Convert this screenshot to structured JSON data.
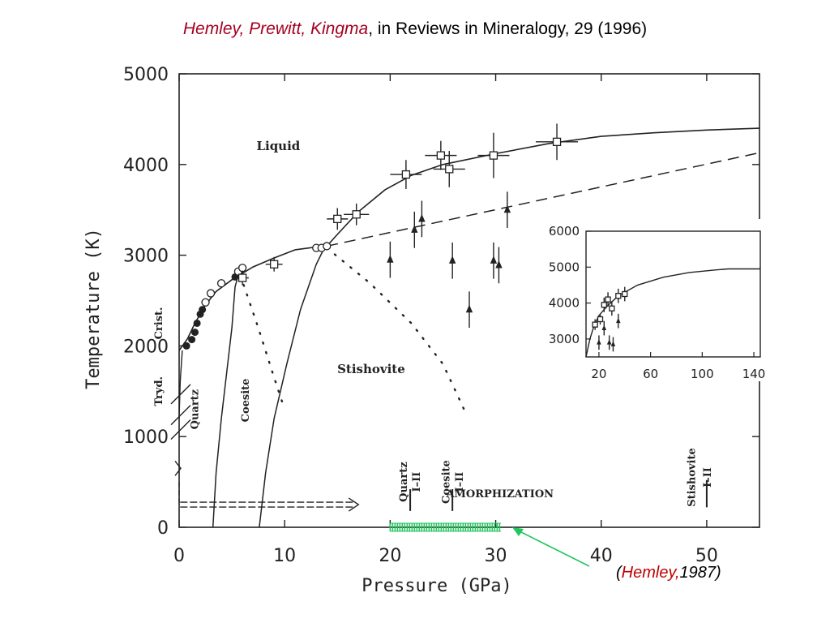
{
  "header": {
    "authors": "Hemley, Prewitt, Kingma",
    "rest": ", in Reviews in Mineralogy, 29 (1996)"
  },
  "attribution": {
    "open": "(",
    "name": "Hemley,",
    "year": "1987)"
  },
  "colors": {
    "title_red": "#a50021",
    "ink": "#222222",
    "green": "#22c55e"
  },
  "chart_data": [
    {
      "type": "scatter",
      "title": "",
      "xlabel": "Pressure (GPa)",
      "ylabel": "Temperature (K)",
      "xlim": [
        0,
        55
      ],
      "ylim": [
        0,
        5000
      ],
      "x_ticks": [
        "0",
        "10",
        "20",
        "30",
        "40",
        "50"
      ],
      "x_tick_values": [
        0,
        10,
        20,
        30,
        40,
        50
      ],
      "y_ticks": [
        "0",
        "1000",
        "2000",
        "3000",
        "4000",
        "5000"
      ],
      "y_tick_values": [
        0,
        1000,
        2000,
        3000,
        4000,
        5000
      ],
      "phase_labels": [
        {
          "text": "Liquid",
          "x": 9.4,
          "y": 4160,
          "rotate": 0
        },
        {
          "text": "Stishovite",
          "x": 18.2,
          "y": 1700,
          "rotate": 0
        },
        {
          "text": "Crist.",
          "x": -1.6,
          "y": 2250,
          "rotate": -90
        },
        {
          "text": "Tryd.",
          "x": -1.6,
          "y": 1500,
          "rotate": -90
        },
        {
          "text": "Quartz",
          "x": 1.8,
          "y": 1300,
          "rotate": -90
        },
        {
          "text": "Coesite",
          "x": 6.6,
          "y": 1400,
          "rotate": -90
        },
        {
          "text": "Quartz",
          "x": 21.6,
          "y": 500,
          "rotate": -90
        },
        {
          "text": "I–II",
          "x": 22.8,
          "y": 500,
          "rotate": -90
        },
        {
          "text": "Coesite",
          "x": 25.6,
          "y": 500,
          "rotate": -90
        },
        {
          "text": "I–II",
          "x": 26.9,
          "y": 500,
          "rotate": -90
        },
        {
          "text": "Stishovite",
          "x": 48.9,
          "y": 550,
          "rotate": -90
        },
        {
          "text": "I–II",
          "x": 50.4,
          "y": 550,
          "rotate": -90
        },
        {
          "text": "AMORPHIZATION",
          "x": 30.4,
          "y": 330,
          "rotate": 0
        }
      ],
      "melting_curve": [
        [
          0.0,
          1950
        ],
        [
          0.8,
          2080
        ],
        [
          1.5,
          2250
        ],
        [
          2.5,
          2450
        ],
        [
          3.5,
          2600
        ],
        [
          5.0,
          2730
        ],
        [
          7.0,
          2870
        ],
        [
          9.0,
          2970
        ],
        [
          11.0,
          3060
        ],
        [
          13.0,
          3090
        ],
        [
          14.0,
          3100
        ],
        [
          15.0,
          3230
        ],
        [
          17.0,
          3480
        ],
        [
          19.5,
          3720
        ],
        [
          22.0,
          3880
        ],
        [
          25.0,
          4000
        ],
        [
          30.0,
          4120
        ],
        [
          35.0,
          4230
        ],
        [
          40.0,
          4310
        ],
        [
          45.0,
          4350
        ],
        [
          50.0,
          4380
        ],
        [
          55.0,
          4400
        ]
      ],
      "dashed_extrapolation": [
        [
          14.0,
          3100
        ],
        [
          55.0,
          4130
        ]
      ],
      "quartz_coesite_boundary": [
        [
          3.2,
          0
        ],
        [
          3.5,
          600
        ],
        [
          4.0,
          1200
        ],
        [
          4.6,
          1800
        ],
        [
          5.0,
          2200
        ],
        [
          5.3,
          2650
        ],
        [
          5.6,
          2780
        ]
      ],
      "coesite_stishovite_boundary": [
        [
          7.6,
          0
        ],
        [
          8.2,
          600
        ],
        [
          9.0,
          1200
        ],
        [
          10.2,
          1800
        ],
        [
          11.5,
          2400
        ],
        [
          13.0,
          2900
        ],
        [
          13.8,
          3090
        ]
      ],
      "cristobalite_boundary": [
        [
          0.0,
          1200
        ],
        [
          0.1,
          1600
        ],
        [
          0.3,
          1950
        ]
      ],
      "metastable_dotted": [
        [
          [
            5.8,
            2780
          ],
          [
            7.5,
            2200
          ],
          [
            9.0,
            1650
          ],
          [
            10.0,
            1300
          ]
        ],
        [
          [
            14.0,
            3080
          ],
          [
            18.0,
            2700
          ],
          [
            22.0,
            2250
          ],
          [
            25.0,
            1800
          ],
          [
            27.0,
            1300
          ]
        ]
      ],
      "data_points": [
        {
          "x": 0.7,
          "y": 2000,
          "marker": "filled-circle"
        },
        {
          "x": 1.2,
          "y": 2070,
          "marker": "filled-circle"
        },
        {
          "x": 1.5,
          "y": 2150,
          "marker": "filled-circle"
        },
        {
          "x": 1.7,
          "y": 2250,
          "marker": "filled-circle"
        },
        {
          "x": 2.0,
          "y": 2350,
          "marker": "filled-circle"
        },
        {
          "x": 2.2,
          "y": 2400,
          "marker": "filled-circle"
        },
        {
          "x": 2.5,
          "y": 2480,
          "marker": "open-circle"
        },
        {
          "x": 3.0,
          "y": 2580,
          "marker": "open-circle"
        },
        {
          "x": 4.0,
          "y": 2690,
          "marker": "open-circle"
        },
        {
          "x": 5.3,
          "y": 2760,
          "marker": "filled-circle"
        },
        {
          "x": 5.6,
          "y": 2820,
          "marker": "open-circle"
        },
        {
          "x": 6.0,
          "y": 2860,
          "marker": "open-circle"
        },
        {
          "x": 13.0,
          "y": 3080,
          "marker": "open-circle"
        },
        {
          "x": 13.5,
          "y": 3080,
          "marker": "open-circle"
        },
        {
          "x": 14.0,
          "y": 3100,
          "marker": "open-circle"
        },
        {
          "x": 6.0,
          "y": 2750,
          "marker": "open-square",
          "xerr": 0.6,
          "yerr": 80
        },
        {
          "x": 9.0,
          "y": 2900,
          "marker": "open-square",
          "xerr": 0.8,
          "yerr": 80
        },
        {
          "x": 15.0,
          "y": 3400,
          "marker": "open-square",
          "xerr": 1.0,
          "yerr": 120
        },
        {
          "x": 16.8,
          "y": 3450,
          "marker": "open-square",
          "xerr": 1.2,
          "yerr": 120
        },
        {
          "x": 21.5,
          "y": 3890,
          "marker": "open-square",
          "xerr": 1.5,
          "yerr": 160
        },
        {
          "x": 24.8,
          "y": 4100,
          "marker": "open-square",
          "xerr": 1.5,
          "yerr": 160
        },
        {
          "x": 25.6,
          "y": 3950,
          "marker": "open-square",
          "xerr": 1.5,
          "yerr": 200
        },
        {
          "x": 29.8,
          "y": 4100,
          "marker": "open-square",
          "xerr": 1.5,
          "yerr": 250
        },
        {
          "x": 35.8,
          "y": 4250,
          "marker": "open-square",
          "xerr": 2.0,
          "yerr": 200
        },
        {
          "x": 20.0,
          "y": 2950,
          "marker": "filled-triangle",
          "yerr": 200
        },
        {
          "x": 22.3,
          "y": 3280,
          "marker": "filled-triangle",
          "yerr": 200
        },
        {
          "x": 23.0,
          "y": 3400,
          "marker": "filled-triangle",
          "yerr": 200
        },
        {
          "x": 25.9,
          "y": 2940,
          "marker": "filled-triangle",
          "yerr": 200
        },
        {
          "x": 27.5,
          "y": 2400,
          "marker": "filled-triangle",
          "yerr": 200
        },
        {
          "x": 29.8,
          "y": 2940,
          "marker": "filled-triangle",
          "yerr": 200
        },
        {
          "x": 30.3,
          "y": 2890,
          "marker": "filled-triangle",
          "yerr": 200
        },
        {
          "x": 31.1,
          "y": 3500,
          "marker": "filled-triangle",
          "yerr": 200
        }
      ],
      "transition_ticks": [
        {
          "x": 21.9,
          "y0": 180,
          "y1": 420
        },
        {
          "x": 25.9,
          "y0": 180,
          "y1": 420
        },
        {
          "x": 50.0,
          "y0": 220,
          "y1": 520
        }
      ],
      "amorphization_range": {
        "x0": 20.0,
        "x1": 30.5,
        "y": 0,
        "color": "#22c55e"
      },
      "double_arrow": {
        "x0": 0.1,
        "x1": 17.0,
        "y": 250
      }
    },
    {
      "type": "scatter",
      "title": "",
      "xlim": [
        10,
        145
      ],
      "ylim": [
        2500,
        6000
      ],
      "x_ticks": [
        "20",
        "60",
        "100",
        "140"
      ],
      "x_tick_values": [
        20,
        60,
        100,
        140
      ],
      "y_ticks": [
        "3000",
        "4000",
        "5000",
        "6000"
      ],
      "y_tick_values": [
        3000,
        4000,
        5000,
        6000
      ],
      "curve": [
        [
          10,
          2500
        ],
        [
          13,
          3000
        ],
        [
          16,
          3350
        ],
        [
          20,
          3650
        ],
        [
          26,
          3900
        ],
        [
          35,
          4200
        ],
        [
          50,
          4500
        ],
        [
          70,
          4720
        ],
        [
          90,
          4850
        ],
        [
          110,
          4920
        ],
        [
          120,
          4950
        ],
        [
          145,
          4950
        ]
      ],
      "data_points": [
        {
          "x": 17,
          "y": 3400,
          "marker": "open-square",
          "yerr": 150
        },
        {
          "x": 21,
          "y": 3550,
          "marker": "open-square",
          "yerr": 150
        },
        {
          "x": 24,
          "y": 3950,
          "marker": "open-square",
          "yerr": 200
        },
        {
          "x": 27,
          "y": 4100,
          "marker": "open-square",
          "yerr": 200
        },
        {
          "x": 30,
          "y": 3850,
          "marker": "open-square",
          "yerr": 200
        },
        {
          "x": 35,
          "y": 4200,
          "marker": "open-square",
          "yerr": 200
        },
        {
          "x": 40,
          "y": 4250,
          "marker": "open-square",
          "yerr": 200
        },
        {
          "x": 20,
          "y": 2900,
          "marker": "filled-triangle",
          "yerr": 200
        },
        {
          "x": 24,
          "y": 3300,
          "marker": "filled-triangle",
          "yerr": 200
        },
        {
          "x": 28,
          "y": 2900,
          "marker": "filled-triangle",
          "yerr": 200
        },
        {
          "x": 31,
          "y": 2850,
          "marker": "filled-triangle",
          "yerr": 200
        },
        {
          "x": 35,
          "y": 3500,
          "marker": "filled-triangle",
          "yerr": 200
        }
      ]
    }
  ]
}
